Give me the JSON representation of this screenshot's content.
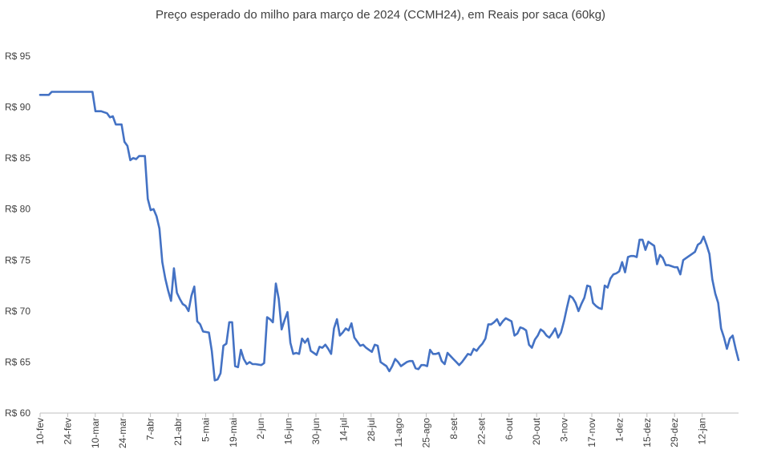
{
  "chart_data": {
    "type": "line",
    "title": "Preço esperado do milho para março de 2024 (CCMH24), em Reais por saca (60kg)",
    "xlabel": "",
    "ylabel": "",
    "ylim": [
      60,
      95
    ],
    "y_ticks": [
      60,
      65,
      70,
      75,
      80,
      85,
      90,
      95
    ],
    "y_tick_labels": [
      "R$ 60",
      "R$ 65",
      "R$ 70",
      "R$ 75",
      "R$ 80",
      "R$ 85",
      "R$ 90",
      "R$ 95"
    ],
    "x_tick_labels": [
      "10-fev",
      "24-fev",
      "10-mar",
      "24-mar",
      "7-abr",
      "21-abr",
      "5-mai",
      "19-mai",
      "2-jun",
      "16-jun",
      "30-jun",
      "14-jul",
      "28-jul",
      "11-ago",
      "25-ago",
      "8-set",
      "22-set",
      "6-out",
      "20-out",
      "3-nov",
      "17-nov",
      "1-dez",
      "15-dez",
      "29-dez",
      "12-jan"
    ],
    "grid": false,
    "legend": "none",
    "line_color": "#4472C4",
    "series": [
      {
        "name": "",
        "values": [
          [
            0,
            91.2
          ],
          [
            3,
            91.2
          ],
          [
            4,
            91.5
          ],
          [
            14,
            91.5
          ],
          [
            18,
            91.5
          ],
          [
            19,
            89.6
          ],
          [
            21,
            89.6
          ],
          [
            23,
            89.4
          ],
          [
            24,
            89.0
          ],
          [
            25,
            89.1
          ],
          [
            26,
            88.3
          ],
          [
            28,
            88.3
          ],
          [
            29,
            86.6
          ],
          [
            30,
            86.2
          ],
          [
            31,
            84.8
          ],
          [
            32,
            85.0
          ],
          [
            33,
            84.9
          ],
          [
            34,
            85.2
          ],
          [
            36,
            85.2
          ],
          [
            37,
            81.0
          ],
          [
            38,
            79.9
          ],
          [
            39,
            80.0
          ],
          [
            40,
            79.3
          ],
          [
            41,
            78.1
          ],
          [
            42,
            74.8
          ],
          [
            43,
            73.2
          ],
          [
            44,
            72.0
          ],
          [
            45,
            71.0
          ],
          [
            46,
            74.2
          ],
          [
            47,
            71.8
          ],
          [
            48,
            71.2
          ],
          [
            49,
            70.7
          ],
          [
            50,
            70.5
          ],
          [
            51,
            70.0
          ],
          [
            52,
            71.5
          ],
          [
            53,
            72.4
          ],
          [
            54,
            69.0
          ],
          [
            55,
            68.7
          ],
          [
            56,
            68.0
          ],
          [
            58,
            67.9
          ],
          [
            59,
            66.1
          ],
          [
            60,
            63.2
          ],
          [
            61,
            63.3
          ],
          [
            62,
            63.9
          ],
          [
            63,
            66.6
          ],
          [
            64,
            66.8
          ],
          [
            65,
            68.9
          ],
          [
            66,
            68.9
          ],
          [
            67,
            64.6
          ],
          [
            68,
            64.5
          ],
          [
            69,
            66.2
          ],
          [
            70,
            65.3
          ],
          [
            71,
            64.8
          ],
          [
            72,
            65.0
          ],
          [
            73,
            64.8
          ],
          [
            74,
            64.8
          ],
          [
            76,
            64.7
          ],
          [
            77,
            64.9
          ],
          [
            78,
            69.4
          ],
          [
            79,
            69.2
          ],
          [
            80,
            68.9
          ],
          [
            81,
            72.7
          ],
          [
            82,
            71.2
          ],
          [
            83,
            68.2
          ],
          [
            84,
            69.1
          ],
          [
            85,
            69.9
          ],
          [
            86,
            66.9
          ],
          [
            87,
            65.8
          ],
          [
            88,
            65.9
          ],
          [
            89,
            65.8
          ],
          [
            90,
            67.3
          ],
          [
            91,
            66.9
          ],
          [
            92,
            67.3
          ],
          [
            93,
            66.1
          ],
          [
            95,
            65.7
          ],
          [
            96,
            66.5
          ],
          [
            97,
            66.4
          ],
          [
            98,
            66.7
          ],
          [
            99,
            66.3
          ],
          [
            100,
            65.8
          ],
          [
            101,
            68.3
          ],
          [
            102,
            69.2
          ],
          [
            103,
            67.6
          ],
          [
            104,
            67.9
          ],
          [
            105,
            68.3
          ],
          [
            106,
            68.1
          ],
          [
            107,
            68.8
          ],
          [
            108,
            67.4
          ],
          [
            109,
            67.0
          ],
          [
            110,
            66.6
          ],
          [
            111,
            66.7
          ],
          [
            112,
            66.4
          ],
          [
            113,
            66.2
          ],
          [
            114,
            66.0
          ],
          [
            115,
            66.7
          ],
          [
            116,
            66.6
          ],
          [
            117,
            65.0
          ],
          [
            118,
            64.8
          ],
          [
            119,
            64.6
          ],
          [
            120,
            64.1
          ],
          [
            121,
            64.6
          ],
          [
            122,
            65.3
          ],
          [
            123,
            65.0
          ],
          [
            124,
            64.6
          ],
          [
            125,
            64.8
          ],
          [
            126,
            65.0
          ],
          [
            127,
            65.1
          ],
          [
            128,
            65.1
          ],
          [
            129,
            64.4
          ],
          [
            130,
            64.3
          ],
          [
            131,
            64.7
          ],
          [
            132,
            64.7
          ],
          [
            133,
            64.6
          ],
          [
            134,
            66.2
          ],
          [
            135,
            65.8
          ],
          [
            136,
            65.8
          ],
          [
            137,
            65.9
          ],
          [
            138,
            65.1
          ],
          [
            139,
            64.8
          ],
          [
            140,
            65.9
          ],
          [
            141,
            65.6
          ],
          [
            142,
            65.3
          ],
          [
            143,
            65.0
          ],
          [
            144,
            64.7
          ],
          [
            145,
            65.0
          ],
          [
            146,
            65.4
          ],
          [
            147,
            65.8
          ],
          [
            148,
            65.7
          ],
          [
            149,
            66.3
          ],
          [
            150,
            66.1
          ],
          [
            151,
            66.5
          ],
          [
            152,
            66.8
          ],
          [
            153,
            67.3
          ],
          [
            154,
            68.7
          ],
          [
            155,
            68.7
          ],
          [
            156,
            68.9
          ],
          [
            157,
            69.2
          ],
          [
            158,
            68.6
          ],
          [
            159,
            69.0
          ],
          [
            160,
            69.3
          ],
          [
            162,
            69.0
          ],
          [
            163,
            67.6
          ],
          [
            164,
            67.8
          ],
          [
            165,
            68.4
          ],
          [
            166,
            68.3
          ],
          [
            167,
            68.1
          ],
          [
            168,
            66.7
          ],
          [
            169,
            66.4
          ],
          [
            170,
            67.2
          ],
          [
            171,
            67.6
          ],
          [
            172,
            68.2
          ],
          [
            173,
            68.0
          ],
          [
            174,
            67.6
          ],
          [
            175,
            67.4
          ],
          [
            176,
            67.8
          ],
          [
            177,
            68.3
          ],
          [
            178,
            67.4
          ],
          [
            179,
            67.9
          ],
          [
            180,
            69.0
          ],
          [
            181,
            70.3
          ],
          [
            182,
            71.5
          ],
          [
            183,
            71.3
          ],
          [
            184,
            70.8
          ],
          [
            185,
            70.0
          ],
          [
            186,
            70.7
          ],
          [
            187,
            71.3
          ],
          [
            188,
            72.5
          ],
          [
            189,
            72.4
          ],
          [
            190,
            70.8
          ],
          [
            191,
            70.5
          ],
          [
            192,
            70.3
          ],
          [
            193,
            70.2
          ],
          [
            194,
            72.5
          ],
          [
            195,
            72.3
          ],
          [
            196,
            73.2
          ],
          [
            197,
            73.6
          ],
          [
            198,
            73.7
          ],
          [
            199,
            73.9
          ],
          [
            200,
            74.8
          ],
          [
            201,
            73.8
          ],
          [
            202,
            75.3
          ],
          [
            203,
            75.4
          ],
          [
            204,
            75.4
          ],
          [
            205,
            75.3
          ],
          [
            206,
            77.0
          ],
          [
            207,
            77.0
          ],
          [
            208,
            76.0
          ],
          [
            209,
            76.8
          ],
          [
            210,
            76.6
          ],
          [
            211,
            76.4
          ],
          [
            212,
            74.6
          ],
          [
            213,
            75.5
          ],
          [
            214,
            75.2
          ],
          [
            215,
            74.5
          ],
          [
            216,
            74.5
          ],
          [
            217,
            74.4
          ],
          [
            218,
            74.3
          ],
          [
            219,
            74.3
          ],
          [
            220,
            73.6
          ],
          [
            221,
            75.0
          ],
          [
            222,
            75.2
          ],
          [
            223,
            75.4
          ],
          [
            224,
            75.6
          ],
          [
            225,
            75.8
          ],
          [
            226,
            76.5
          ],
          [
            227,
            76.7
          ],
          [
            228,
            77.3
          ],
          [
            229,
            76.5
          ],
          [
            230,
            75.6
          ],
          [
            231,
            73.1
          ],
          [
            232,
            71.7
          ],
          [
            233,
            70.8
          ],
          [
            234,
            68.3
          ],
          [
            235,
            67.4
          ],
          [
            236,
            66.3
          ],
          [
            237,
            67.3
          ],
          [
            238,
            67.6
          ],
          [
            239,
            66.3
          ],
          [
            240,
            65.2
          ]
        ]
      }
    ]
  }
}
